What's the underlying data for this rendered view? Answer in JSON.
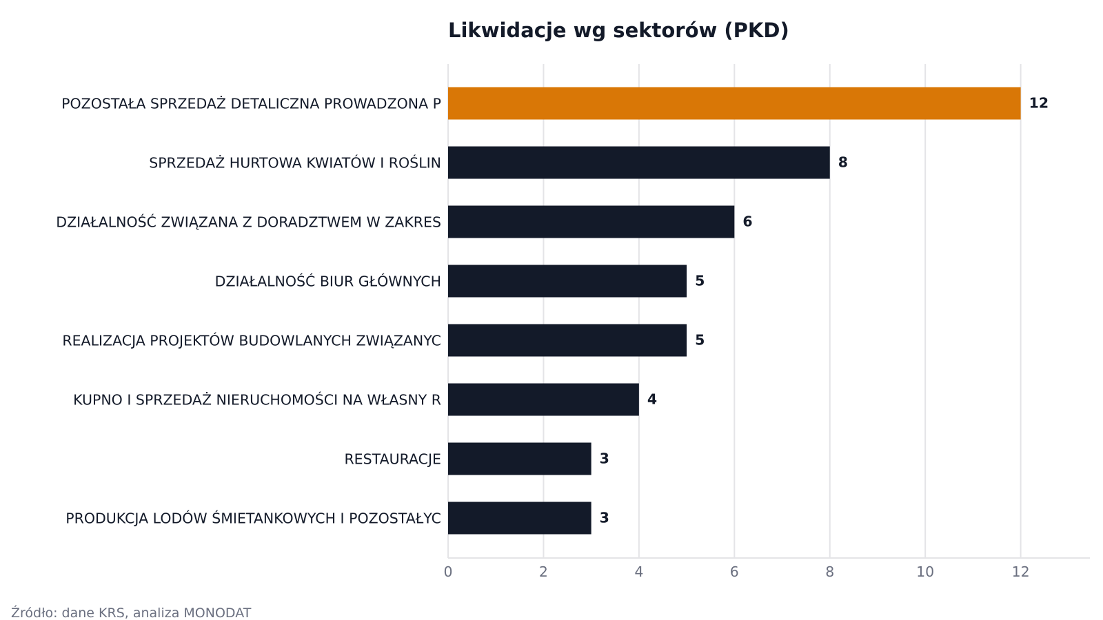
{
  "chart_data": {
    "type": "bar",
    "orientation": "horizontal",
    "title": "Likwidacje wg sektorów (PKD)",
    "xlabel": "",
    "ylabel": "",
    "categories": [
      "POZOSTAŁA SPRZEDAŻ DETALICZNA PROWADZONA P",
      "SPRZEDAŻ HURTOWA KWIATÓW I ROŚLIN",
      "DZIAŁALNOŚĆ ZWIĄZANA Z DORADZTWEM W ZAKRES",
      "DZIAŁALNOŚĆ BIUR GŁÓWNYCH",
      "REALIZACJA PROJEKTÓW BUDOWLANYCH ZWIĄZANYC",
      "KUPNO I SPRZEDAŻ NIERUCHOMOŚCI NA WŁASNY R",
      "RESTAURACJE",
      "PRODUKCJA LODÓW ŚMIETANKOWYCH I POZOSTAŁYC"
    ],
    "values": [
      12,
      8,
      6,
      5,
      5,
      4,
      3,
      3
    ],
    "xlim": [
      0,
      13.45
    ],
    "xticks": [
      0,
      2,
      4,
      6,
      8,
      10,
      12
    ],
    "grid": "vertical",
    "highlight_index": 0,
    "colors": {
      "highlight": "#d97706",
      "bar": "#131a29",
      "grid": "#e4e4e7",
      "axis": "#e4e4e7",
      "text": "#131a29",
      "muted": "#6b7080"
    }
  },
  "footer": {
    "source": "Źródło: dane KRS, analiza MONODAT"
  }
}
